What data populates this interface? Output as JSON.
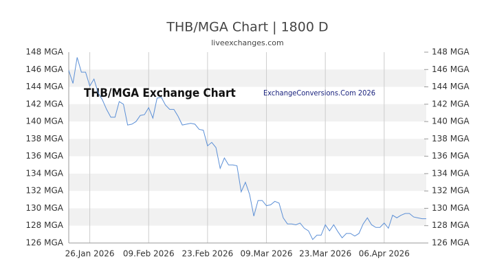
{
  "chart_data": {
    "type": "line",
    "title": "THB/MGA Chart | 1800 D",
    "subtitle": "liveexchanges.com",
    "annotations": [
      "THB/MGA Exchange Chart",
      "ExchangeConversions.Com 2026"
    ],
    "x": [
      "21.Jan 2026",
      "22.Jan 2026",
      "23.Jan 2026",
      "24.Jan 2026",
      "25.Jan 2026",
      "26.Jan 2026",
      "27.Jan 2026",
      "28.Jan 2026",
      "29.Jan 2026",
      "30.Jan 2026",
      "31.Jan 2026",
      "01.Feb 2026",
      "02.Feb 2026",
      "03.Feb 2026",
      "04.Feb 2026",
      "05.Feb 2026",
      "06.Feb 2026",
      "07.Feb 2026",
      "08.Feb 2026",
      "09.Feb 2026",
      "10.Feb 2026",
      "11.Feb 2026",
      "12.Feb 2026",
      "13.Feb 2026",
      "14.Feb 2026",
      "15.Feb 2026",
      "16.Feb 2026",
      "17.Feb 2026",
      "18.Feb 2026",
      "19.Feb 2026",
      "20.Feb 2026",
      "21.Feb 2026",
      "22.Feb 2026",
      "23.Feb 2026",
      "24.Feb 2026",
      "25.Feb 2026",
      "26.Feb 2026",
      "27.Feb 2026",
      "28.Feb 2026",
      "01.Mar 2026",
      "02.Mar 2026",
      "03.Mar 2026",
      "04.Mar 2026",
      "05.Mar 2026",
      "06.Mar 2026",
      "07.Mar 2026",
      "08.Mar 2026",
      "09.Mar 2026",
      "10.Mar 2026",
      "11.Mar 2026",
      "12.Mar 2026",
      "13.Mar 2026",
      "14.Mar 2026",
      "15.Mar 2026",
      "16.Mar 2026",
      "17.Mar 2026",
      "18.Mar 2026",
      "19.Mar 2026",
      "20.Mar 2026",
      "21.Mar 2026",
      "22.Mar 2026",
      "23.Mar 2026",
      "24.Mar 2026",
      "25.Mar 2026",
      "26.Mar 2026",
      "27.Mar 2026",
      "28.Mar 2026",
      "29.Mar 2026",
      "30.Mar 2026",
      "31.Mar 2026",
      "01.Apr 2026",
      "02.Apr 2026",
      "03.Apr 2026",
      "04.Apr 2026",
      "05.Apr 2026",
      "06.Apr 2026",
      "07.Apr 2026",
      "08.Apr 2026",
      "09.Apr 2026",
      "10.Apr 2026",
      "11.Apr 2026",
      "12.Apr 2026",
      "13.Apr 2026",
      "14.Apr 2026",
      "15.Apr 2026",
      "16.Apr 2026"
    ],
    "series": [
      {
        "name": "THB/MGA",
        "color": "#5b8fd6",
        "values": [
          145.9,
          144.4,
          147.4,
          145.7,
          145.7,
          144.1,
          144.9,
          143.3,
          142.5,
          141.4,
          140.5,
          140.5,
          142.3,
          142.0,
          139.6,
          139.7,
          140.0,
          140.7,
          140.8,
          141.6,
          140.4,
          142.7,
          142.8,
          141.9,
          141.4,
          141.4,
          140.6,
          139.6,
          139.7,
          139.8,
          139.7,
          139.1,
          139.0,
          137.2,
          137.6,
          137.0,
          134.6,
          135.8,
          135.0,
          135.0,
          134.9,
          131.9,
          133.0,
          131.6,
          129.1,
          130.9,
          130.9,
          130.3,
          130.4,
          130.8,
          130.6,
          128.9,
          128.2,
          128.2,
          128.1,
          128.3,
          127.7,
          127.4,
          126.4,
          126.9,
          126.9,
          128.1,
          127.4,
          128.1,
          127.3,
          126.6,
          127.1,
          127.1,
          126.8,
          127.1,
          128.2,
          128.9,
          128.1,
          127.8,
          127.8,
          128.3,
          127.7,
          129.2,
          128.9,
          129.2,
          129.4,
          129.4,
          129.0,
          128.9,
          128.8,
          128.8
        ]
      }
    ],
    "xticks": [
      "26.Jan 2026",
      "09.Feb 2026",
      "23.Feb 2026",
      "09.Mar 2026",
      "23.Mar 2026",
      "06.Apr 2026"
    ],
    "ylim": [
      126,
      148
    ],
    "yticks": [
      {
        "value": 126,
        "label": "126 MGA"
      },
      {
        "value": 128,
        "label": "128 MGA"
      },
      {
        "value": 130,
        "label": "130 MGA"
      },
      {
        "value": 132,
        "label": "132 MGA"
      },
      {
        "value": 134,
        "label": "134 MGA"
      },
      {
        "value": 136,
        "label": "136 MGA"
      },
      {
        "value": 138,
        "label": "138 MGA"
      },
      {
        "value": 140,
        "label": "140 MGA"
      },
      {
        "value": 142,
        "label": "142 MGA"
      },
      {
        "value": 144,
        "label": "144 MGA"
      },
      {
        "value": 146,
        "label": "146 MGA"
      },
      {
        "value": 148,
        "label": "148 MGA"
      }
    ],
    "grid": true
  }
}
